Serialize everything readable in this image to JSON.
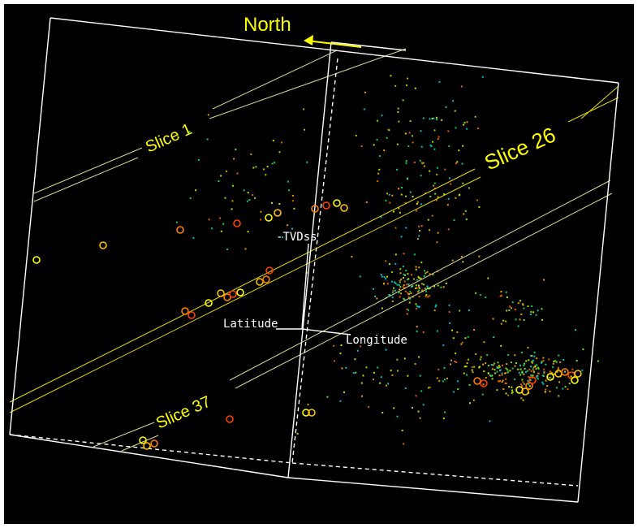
{
  "colors": {
    "background": "#000000",
    "frame": "#ffffff",
    "slice_lines": "#d8d890",
    "slice_26_lines": "#e8e000",
    "label": "#ffff00",
    "axis_label": "#ffffff",
    "event_small": [
      "#00c0c0",
      "#00d060",
      "#80e000",
      "#c0e000",
      "#e0a000",
      "#e06000"
    ],
    "event_large": [
      "#ffff00",
      "#ffc000",
      "#ff8000",
      "#ff4000"
    ]
  },
  "labels": {
    "north": "North",
    "slice_1": "Slice 1",
    "slice_26": "Slice 26",
    "slice_37": "Slice 37",
    "depth_axis": "-TVDss",
    "latitude_axis": "Latitude",
    "longitude_axis": "Longitude"
  },
  "icons": {
    "north_arrow": "arrow-left-icon"
  }
}
